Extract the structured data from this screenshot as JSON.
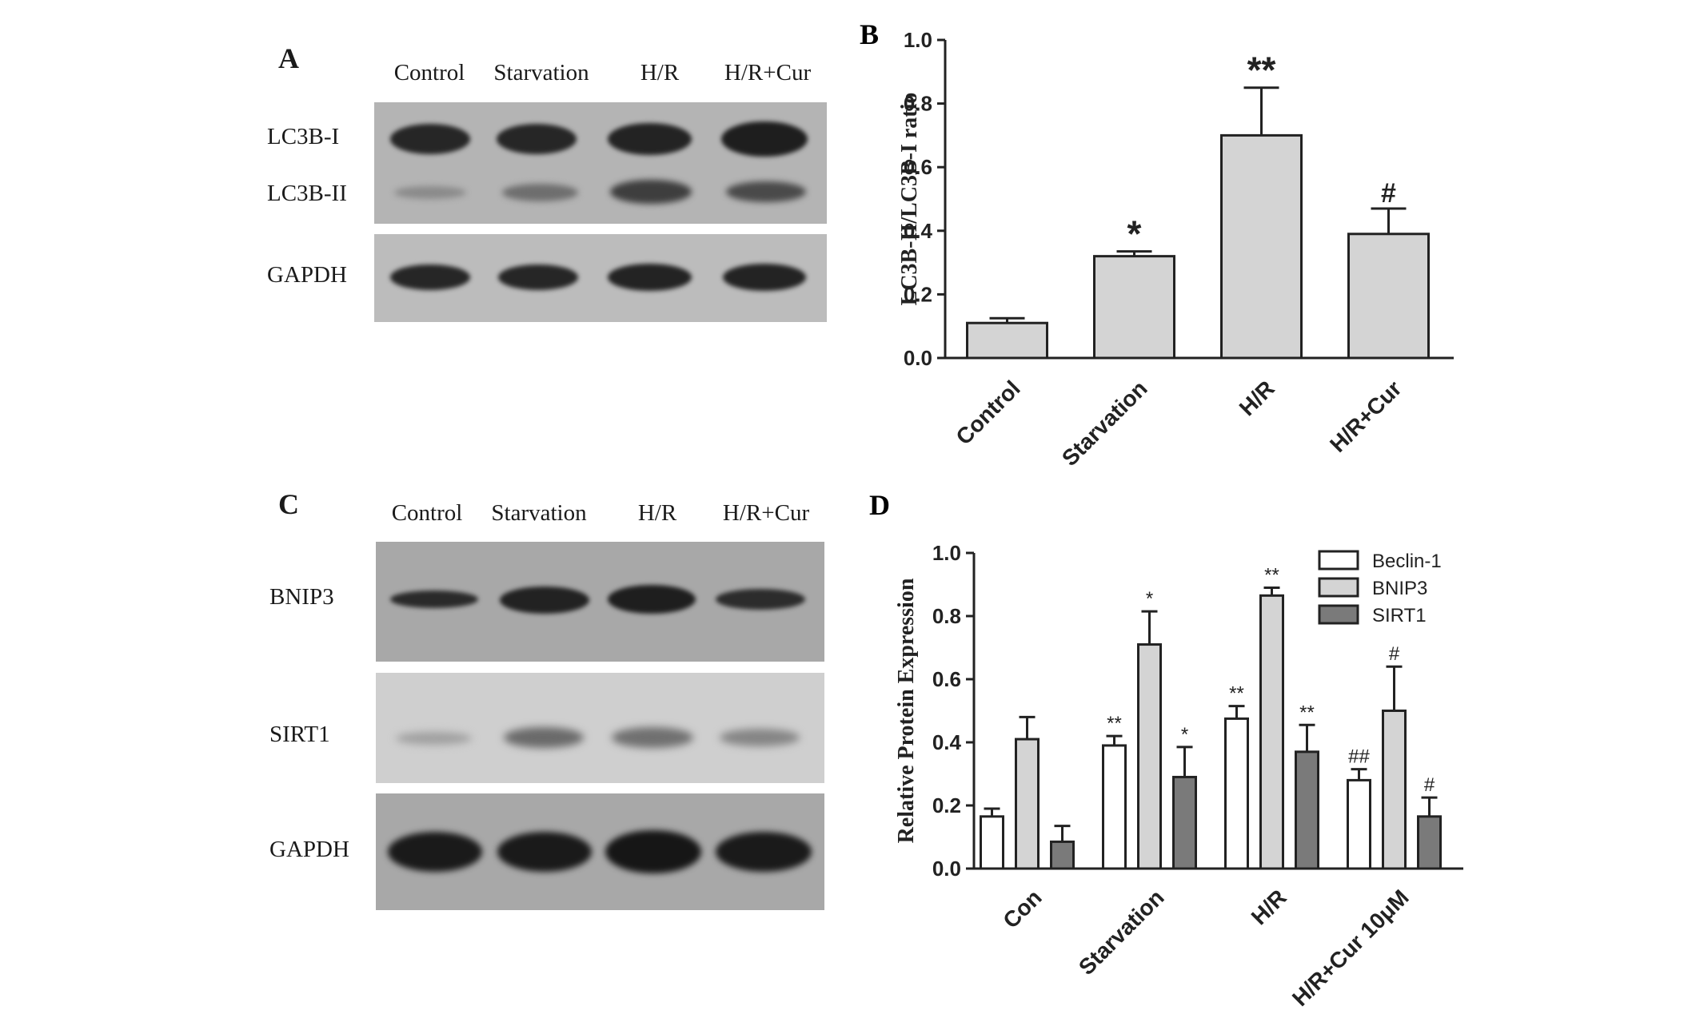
{
  "panelA": {
    "letter": "A",
    "lanes": [
      "Control",
      "Starvation",
      "H/R",
      "H/R+Cur"
    ],
    "rows": [
      "LC3B-I",
      "LC3B-II",
      "GAPDH"
    ]
  },
  "panelC": {
    "letter": "C",
    "lanes": [
      "Control",
      "Starvation",
      "H/R",
      "H/R+Cur"
    ],
    "rows": [
      "BNIP3",
      "SIRT1",
      "GAPDH"
    ]
  },
  "chart_data": [
    {
      "panel": "B",
      "type": "bar",
      "categories": [
        "Control",
        "Starvation",
        "H/R",
        "H/R+Cur"
      ],
      "values": [
        0.11,
        0.32,
        0.7,
        0.39
      ],
      "errors": [
        0.015,
        0.015,
        0.15,
        0.08
      ],
      "annotations": [
        "",
        "*",
        "**",
        "#"
      ],
      "ylabel": "LC3B-II/LC3B-I ratio",
      "ylim": [
        0,
        1.0
      ],
      "yticks": [
        "0.0",
        "0.2",
        "0.4",
        "0.6",
        "0.8",
        "1.0"
      ],
      "bar_color": "#d4d4d4",
      "grid": false
    },
    {
      "panel": "D",
      "type": "bar",
      "categories": [
        "Con",
        "Starvation",
        "H/R",
        "H/R+Cur 10μM"
      ],
      "series": [
        {
          "name": "Beclin-1",
          "color": "#ffffff",
          "values": [
            0.165,
            0.39,
            0.475,
            0.28
          ],
          "errors": [
            0.025,
            0.03,
            0.04,
            0.035
          ],
          "annotations": [
            "",
            "**",
            "**",
            "##"
          ]
        },
        {
          "name": "BNIP3",
          "color": "#d4d4d4",
          "values": [
            0.41,
            0.71,
            0.865,
            0.5
          ],
          "errors": [
            0.07,
            0.105,
            0.025,
            0.14
          ],
          "annotations": [
            "",
            "*",
            "**",
            "#"
          ]
        },
        {
          "name": "SIRT1",
          "color": "#7a7a7a",
          "values": [
            0.085,
            0.29,
            0.37,
            0.165
          ],
          "errors": [
            0.05,
            0.095,
            0.085,
            0.06
          ],
          "annotations": [
            "",
            "*",
            "**",
            "#"
          ]
        }
      ],
      "ylabel": "Relative Protein Expression",
      "ylim": [
        0,
        1.0
      ],
      "yticks": [
        "0.0",
        "0.2",
        "0.4",
        "0.6",
        "0.8",
        "1.0"
      ],
      "legend": "top-right",
      "grid": false
    }
  ]
}
